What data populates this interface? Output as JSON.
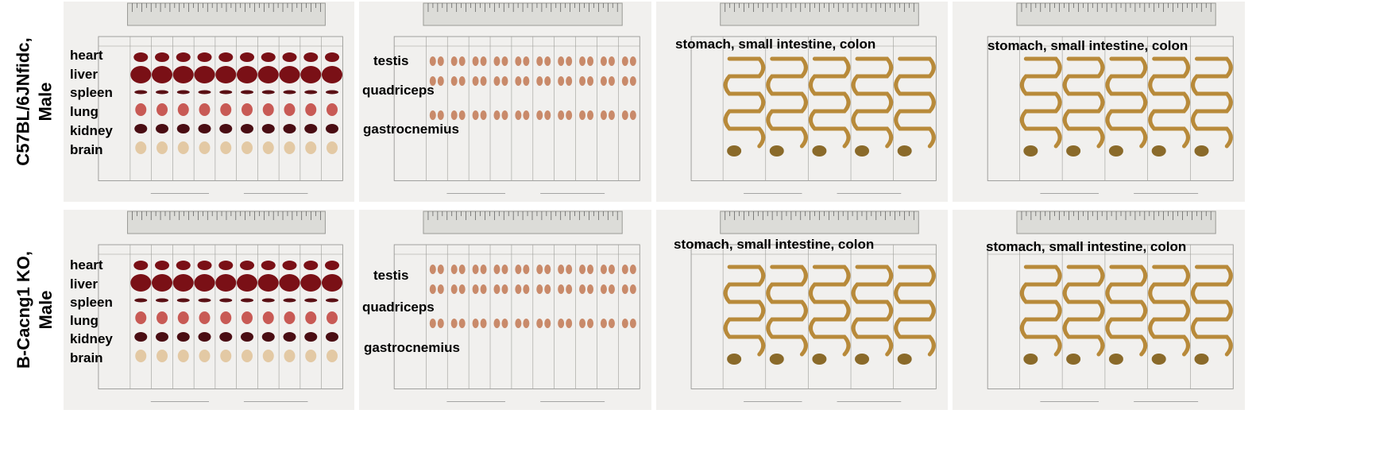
{
  "rows": [
    {
      "label_line1": "C57BL/6JNfidc,",
      "label_line2": "Male"
    },
    {
      "label_line1": "B-Cacng1 KO,",
      "label_line2": "Male"
    }
  ],
  "panel_labels": {
    "organs": [
      "heart",
      "liver",
      "spleen",
      "lung",
      "kidney",
      "brain"
    ],
    "muscles": [
      "testis",
      "quadriceps",
      "gastrocnemius"
    ],
    "gi": "stomach, small intestine, colon"
  },
  "colors": {
    "background": "#ffffff",
    "sheet": "#f1f0ee",
    "ruler": "#dcdcd8",
    "heart_liver": "#7a1016",
    "spleen": "#5a0f14",
    "lung": "#c85a55",
    "kidney": "#4a0d13",
    "brain": "#e3c9a4",
    "muscle": "#c98a6a",
    "intestine": "#b88a3a"
  }
}
